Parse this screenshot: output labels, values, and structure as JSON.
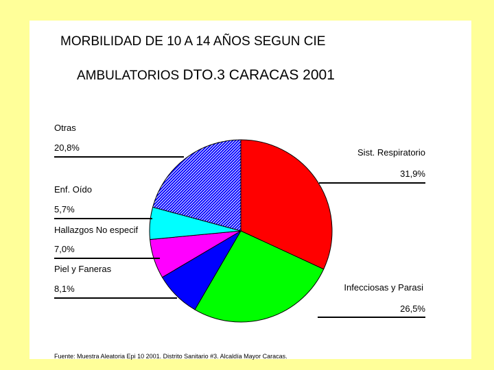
{
  "title_line1": "MORBILIDAD DE 10 A 14 AÑOS SEGUN CIE",
  "title_line2_a": "AMBULATORIOS ",
  "title_line2_b": "DTO.3 CARACAS 2001",
  "source": "Fuente: Muestra Aleatoria Epi 10 2001.  Distrito Sanitario #3. Alcaldía Mayor Caracas.",
  "colors": {
    "background": "#ffff99",
    "plot_area": "#ffffff",
    "respiratorio": "#ff0000",
    "infecciosas": "#00ff00",
    "piel": "#0000ff",
    "hallazgos": "#ff00ff",
    "oido": "#00ffff",
    "otras": "#0000ff"
  },
  "chart_data": {
    "type": "pie",
    "title": "MORBILIDAD DE 10 A 14 AÑOS SEGUN CIE AMBULATORIOS DTO.3 CARACAS 2001",
    "start_angle_deg": 0,
    "direction": "clockwise",
    "slices": [
      {
        "name": "Sist. Respiratorio",
        "value": 31.9,
        "label": "31,9%",
        "color": "#ff0000",
        "pattern": "solid"
      },
      {
        "name": "Infecciosas y Parasi",
        "value": 26.5,
        "label": "26,5%",
        "color": "#00ff00",
        "pattern": "solid"
      },
      {
        "name": "Piel y Faneras",
        "value": 8.1,
        "label": "8,1%",
        "color": "#0000ff",
        "pattern": "solid"
      },
      {
        "name": "Hallazgos No especif",
        "value": 7.0,
        "label": "7,0%",
        "color": "#ff00ff",
        "pattern": "solid"
      },
      {
        "name": "Enf. Oído",
        "value": 5.7,
        "label": "5,7%",
        "color": "#00ffff",
        "pattern": "solid"
      },
      {
        "name": "Otras",
        "value": 20.8,
        "label": "20,8%",
        "color": "#0000ff",
        "pattern": "diagonal-hatch"
      }
    ]
  }
}
